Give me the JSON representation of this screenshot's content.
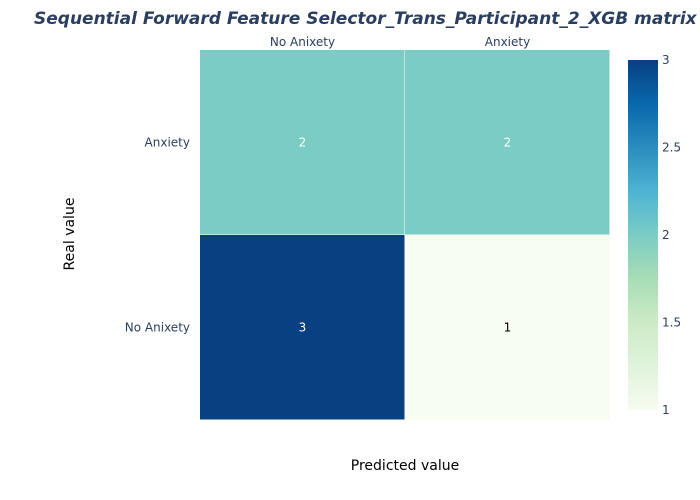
{
  "chart_data": {
    "type": "heatmap",
    "title": "Sequential Forward Feature Selector_Trans_Participant_2_XGB matrix",
    "xlabel": "Predicted value",
    "ylabel": "Real value",
    "x_categories": [
      "No Anixety",
      "Anxiety"
    ],
    "y_categories": [
      "Anxiety",
      "No Anixety"
    ],
    "z": [
      [
        2,
        2
      ],
      [
        3,
        1
      ]
    ],
    "colorscale": "GnBu",
    "color_range": [
      1,
      3
    ],
    "colorbar_ticks": [
      "1",
      "1.5",
      "2",
      "2.5",
      "3"
    ],
    "colorbar_tick_values": [
      1,
      1.5,
      2,
      2.5,
      3
    ],
    "x_axis_position": "top",
    "grid": false,
    "legend": "colorbar-right"
  }
}
